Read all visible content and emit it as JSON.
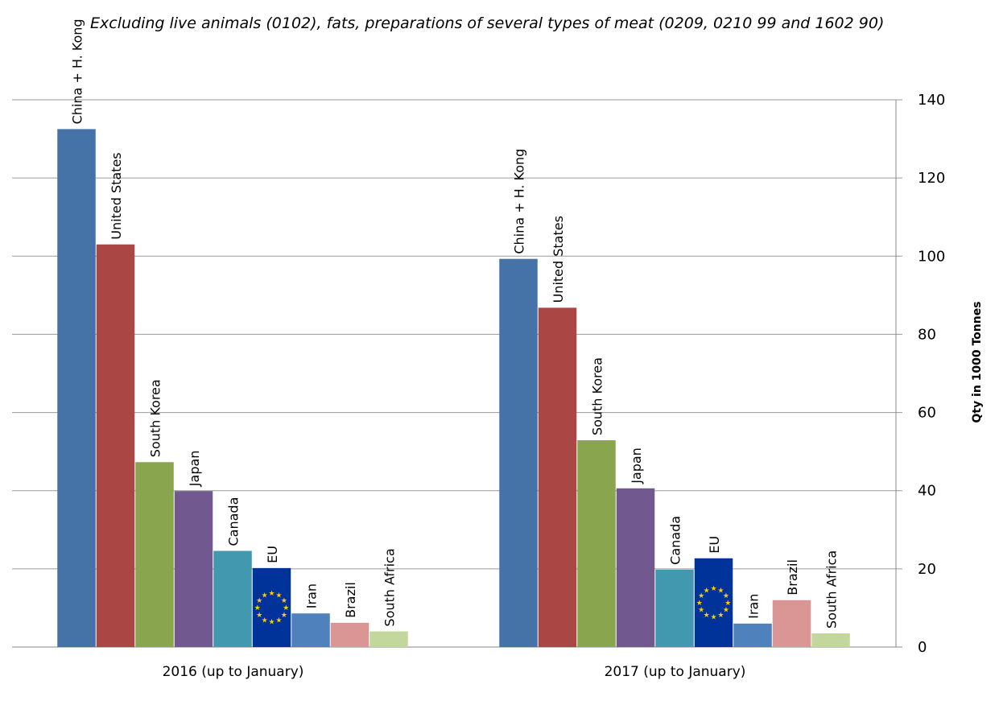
{
  "chart_data": {
    "type": "bar",
    "title": "",
    "subtitle": "Excluding live animals (0102), fats, preparations of several types of meat (0209, 0210 99 and 1602 90)",
    "xlabel": "",
    "ylabel": "Qty in 1000 Tonnes",
    "ylim": [
      0,
      140
    ],
    "yticks": [
      0,
      20,
      40,
      60,
      80,
      100,
      120,
      140
    ],
    "y_axis_side": "right",
    "grid": true,
    "legend": "none (bar labels)",
    "categories": [
      "2016 (up to January)",
      "2017 (up to January)"
    ],
    "series": [
      {
        "name": "China + H. Kong",
        "color": "#4572A7",
        "values": [
          132.5,
          99.3
        ]
      },
      {
        "name": "United States",
        "color": "#AA4643",
        "values": [
          103.0,
          86.8
        ]
      },
      {
        "name": "South Korea",
        "color": "#89A54E",
        "values": [
          47.3,
          52.9
        ]
      },
      {
        "name": "Japan",
        "color": "#71588F",
        "values": [
          39.9,
          40.6
        ]
      },
      {
        "name": "Canada",
        "color": "#4198AF",
        "values": [
          24.6,
          19.8
        ]
      },
      {
        "name": "EU",
        "color": "#003399",
        "values": [
          20.2,
          22.7
        ]
      },
      {
        "name": "Iran",
        "color": "#4F81BD",
        "values": [
          8.6,
          6.0
        ]
      },
      {
        "name": "Brazil",
        "color": "#D99694",
        "values": [
          6.2,
          12.0
        ]
      },
      {
        "name": "South Africa",
        "color": "#C3D69B",
        "values": [
          4.0,
          3.5
        ]
      }
    ]
  }
}
